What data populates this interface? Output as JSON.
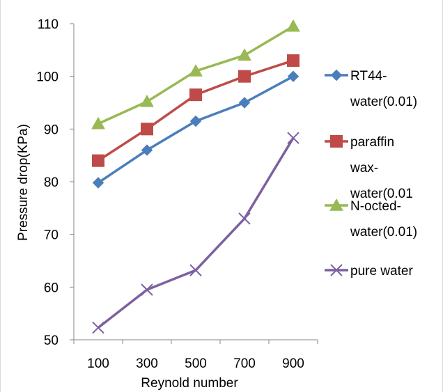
{
  "chart_data": {
    "type": "line",
    "title": "",
    "xlabel": "Reynold number",
    "ylabel": "Pressure drop(KPa)",
    "categories": [
      "100",
      "300",
      "500",
      "700",
      "900"
    ],
    "ylim": [
      50,
      110
    ],
    "yticks": [
      "50",
      "60",
      "70",
      "80",
      "90",
      "100",
      "110"
    ],
    "grid": false,
    "legend_position": "right",
    "series": [
      {
        "name": "RT44-water(0.01)",
        "legend_lines": [
          "RT44-",
          "water(0.01)"
        ],
        "values": [
          79.8,
          86,
          91.5,
          95,
          100
        ],
        "color": "#4a7ebb",
        "marker": "diamond"
      },
      {
        "name": "paraffin wax-water(0.01",
        "legend_lines": [
          "paraffin",
          "wax-",
          "water(0.01"
        ],
        "values": [
          84,
          90,
          96.5,
          100,
          103
        ],
        "color": "#be4b48",
        "marker": "square"
      },
      {
        "name": "N-octed-water(0.01)",
        "legend_lines": [
          "N-octed-",
          "water(0.01)"
        ],
        "values": [
          91,
          95.2,
          101,
          104,
          109.5
        ],
        "color": "#98b954",
        "marker": "triangle"
      },
      {
        "name": "pure water",
        "legend_lines": [
          "pure water"
        ],
        "values": [
          52.3,
          59.5,
          63.2,
          73,
          88.3
        ],
        "color": "#7d60a0",
        "marker": "x"
      }
    ]
  }
}
